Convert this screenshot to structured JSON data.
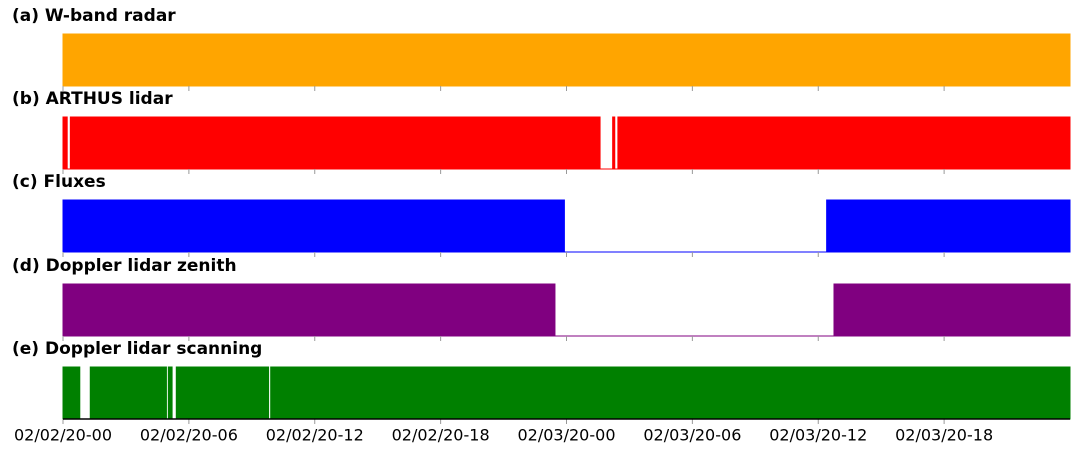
{
  "chart_data": [
    {
      "type": "area",
      "title": "(a) W-band radar",
      "color": "#ffa500",
      "xlim": [
        0,
        48
      ],
      "ylim": [
        0,
        1
      ],
      "x": [
        0,
        48
      ],
      "values": [
        1,
        1
      ]
    },
    {
      "type": "area",
      "title": "(b) ARTHUS lidar",
      "color": "#ff0000",
      "xlim": [
        0,
        48
      ],
      "ylim": [
        0,
        1
      ],
      "x": [
        0,
        0.2,
        0.2,
        0.35,
        0.35,
        25.6,
        25.6,
        26.2,
        26.2,
        26.3,
        26.3,
        26.45,
        26.45,
        48
      ],
      "values": [
        1,
        1,
        0,
        0,
        1,
        1,
        0,
        0,
        1,
        1,
        0,
        0,
        1,
        1
      ]
    },
    {
      "type": "area",
      "title": "(c) Fluxes",
      "color": "#0000ff",
      "xlim": [
        0,
        48
      ],
      "ylim": [
        0,
        1
      ],
      "x": [
        0,
        23.9,
        23.9,
        36.4,
        36.4,
        48
      ],
      "values": [
        1,
        1,
        0,
        0,
        1,
        1
      ]
    },
    {
      "type": "area",
      "title": "(d) Doppler lidar zenith",
      "color": "#800080",
      "xlim": [
        0,
        48
      ],
      "ylim": [
        0,
        1
      ],
      "x": [
        0,
        23.45,
        23.45,
        36.75,
        36.75,
        48
      ],
      "values": [
        1,
        1,
        0,
        0,
        1,
        1
      ]
    },
    {
      "type": "area",
      "title": "(e) Doppler lidar scanning",
      "color": "#008000",
      "xlim": [
        0,
        48
      ],
      "ylim": [
        0,
        1
      ],
      "x": [
        0,
        0.8,
        0.8,
        1.3,
        1.3,
        4.93,
        4.93,
        5.02,
        5.02,
        5.2,
        5.2,
        5.4,
        5.4,
        9.8,
        9.8,
        9.9,
        9.9,
        48
      ],
      "values": [
        1,
        1,
        0,
        0,
        1,
        1,
        0,
        0,
        1,
        1,
        0,
        0,
        1,
        1,
        0,
        0,
        1,
        1
      ],
      "xticks": [
        {
          "value": 0,
          "label": "02/02/20-00"
        },
        {
          "value": 6,
          "label": "02/02/20-06"
        },
        {
          "value": 12,
          "label": "02/02/20-12"
        },
        {
          "value": 18,
          "label": "02/02/20-18"
        },
        {
          "value": 24,
          "label": "02/03/20-00"
        },
        {
          "value": 30,
          "label": "02/03/20-06"
        },
        {
          "value": 36,
          "label": "02/03/20-12"
        },
        {
          "value": 42,
          "label": "02/03/20-18"
        }
      ]
    }
  ]
}
